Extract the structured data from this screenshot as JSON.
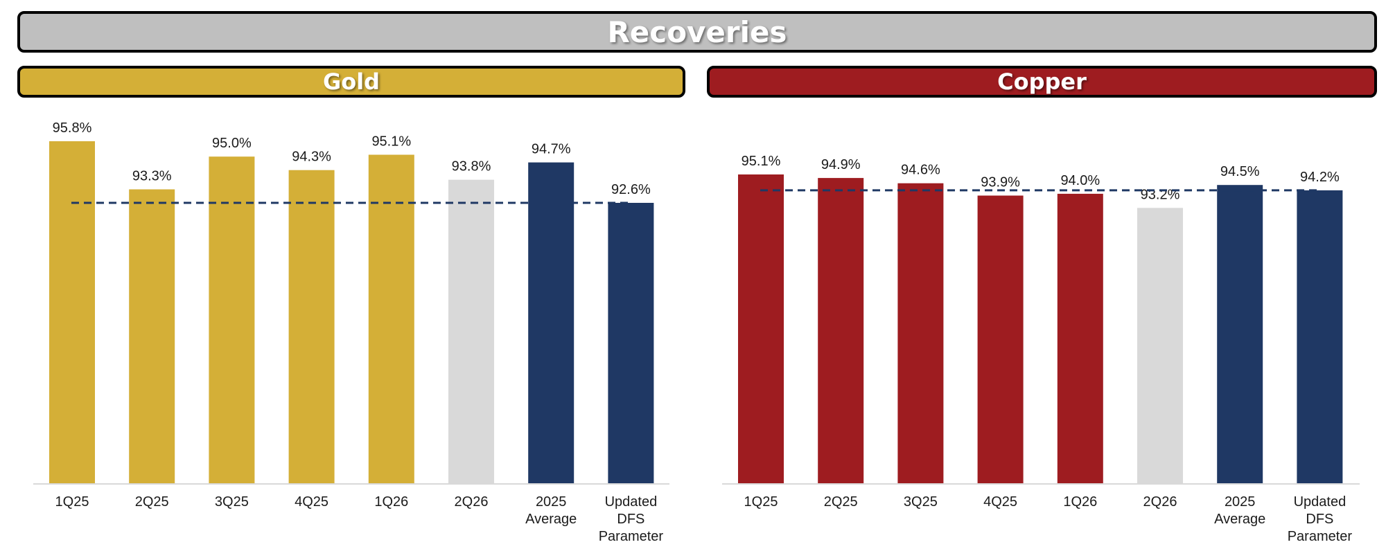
{
  "banner": {
    "title": "Recoveries",
    "color": "#bfbfbf"
  },
  "panels": {
    "gold": {
      "title": "Gold",
      "color": "#d4af37"
    },
    "copper": {
      "title": "Copper",
      "color": "#9e1c20"
    }
  },
  "colors": {
    "highlight": "#1f3864",
    "projection": "#d9d9d9",
    "reference_line": "#1f3864",
    "axis": "#d9d9d9"
  },
  "chart_data": [
    {
      "type": "bar",
      "title": "Gold",
      "categories": [
        [
          "1Q25"
        ],
        [
          "2Q25"
        ],
        [
          "3Q25"
        ],
        [
          "4Q25"
        ],
        [
          "1Q26"
        ],
        [
          "2Q26"
        ],
        [
          "2025",
          "Average"
        ],
        [
          "Updated",
          "DFS",
          "Parameter"
        ]
      ],
      "values": [
        95.8,
        93.3,
        95.0,
        94.3,
        95.1,
        93.8,
        94.7,
        92.6
      ],
      "value_labels": [
        "95.8%",
        "93.3%",
        "95.0%",
        "94.3%",
        "95.1%",
        "93.8%",
        "94.7%",
        "92.6%"
      ],
      "bar_colors": [
        "#d4af37",
        "#d4af37",
        "#d4af37",
        "#d4af37",
        "#d4af37",
        "#d9d9d9",
        "#1f3864",
        "#1f3864"
      ],
      "reference_line": {
        "value": 92.6,
        "style": "dashed"
      },
      "ylim": [
        78.0,
        95.8
      ],
      "grid": false
    },
    {
      "type": "bar",
      "title": "Copper",
      "categories": [
        [
          "1Q25"
        ],
        [
          "2Q25"
        ],
        [
          "3Q25"
        ],
        [
          "4Q25"
        ],
        [
          "1Q26"
        ],
        [
          "2Q26"
        ],
        [
          "2025",
          "Average"
        ],
        [
          "Updated",
          "DFS",
          "Parameter"
        ]
      ],
      "values": [
        95.1,
        94.9,
        94.6,
        93.9,
        94.0,
        93.2,
        94.5,
        94.2
      ],
      "value_labels": [
        "95.1%",
        "94.9%",
        "94.6%",
        "93.9%",
        "94.0%",
        "93.2%",
        "94.5%",
        "94.2%"
      ],
      "bar_colors": [
        "#9e1c20",
        "#9e1c20",
        "#9e1c20",
        "#9e1c20",
        "#9e1c20",
        "#d9d9d9",
        "#1f3864",
        "#1f3864"
      ],
      "reference_line": {
        "value": 94.2,
        "style": "dashed"
      },
      "ylim": [
        77.5,
        95.1
      ],
      "grid": false
    }
  ]
}
